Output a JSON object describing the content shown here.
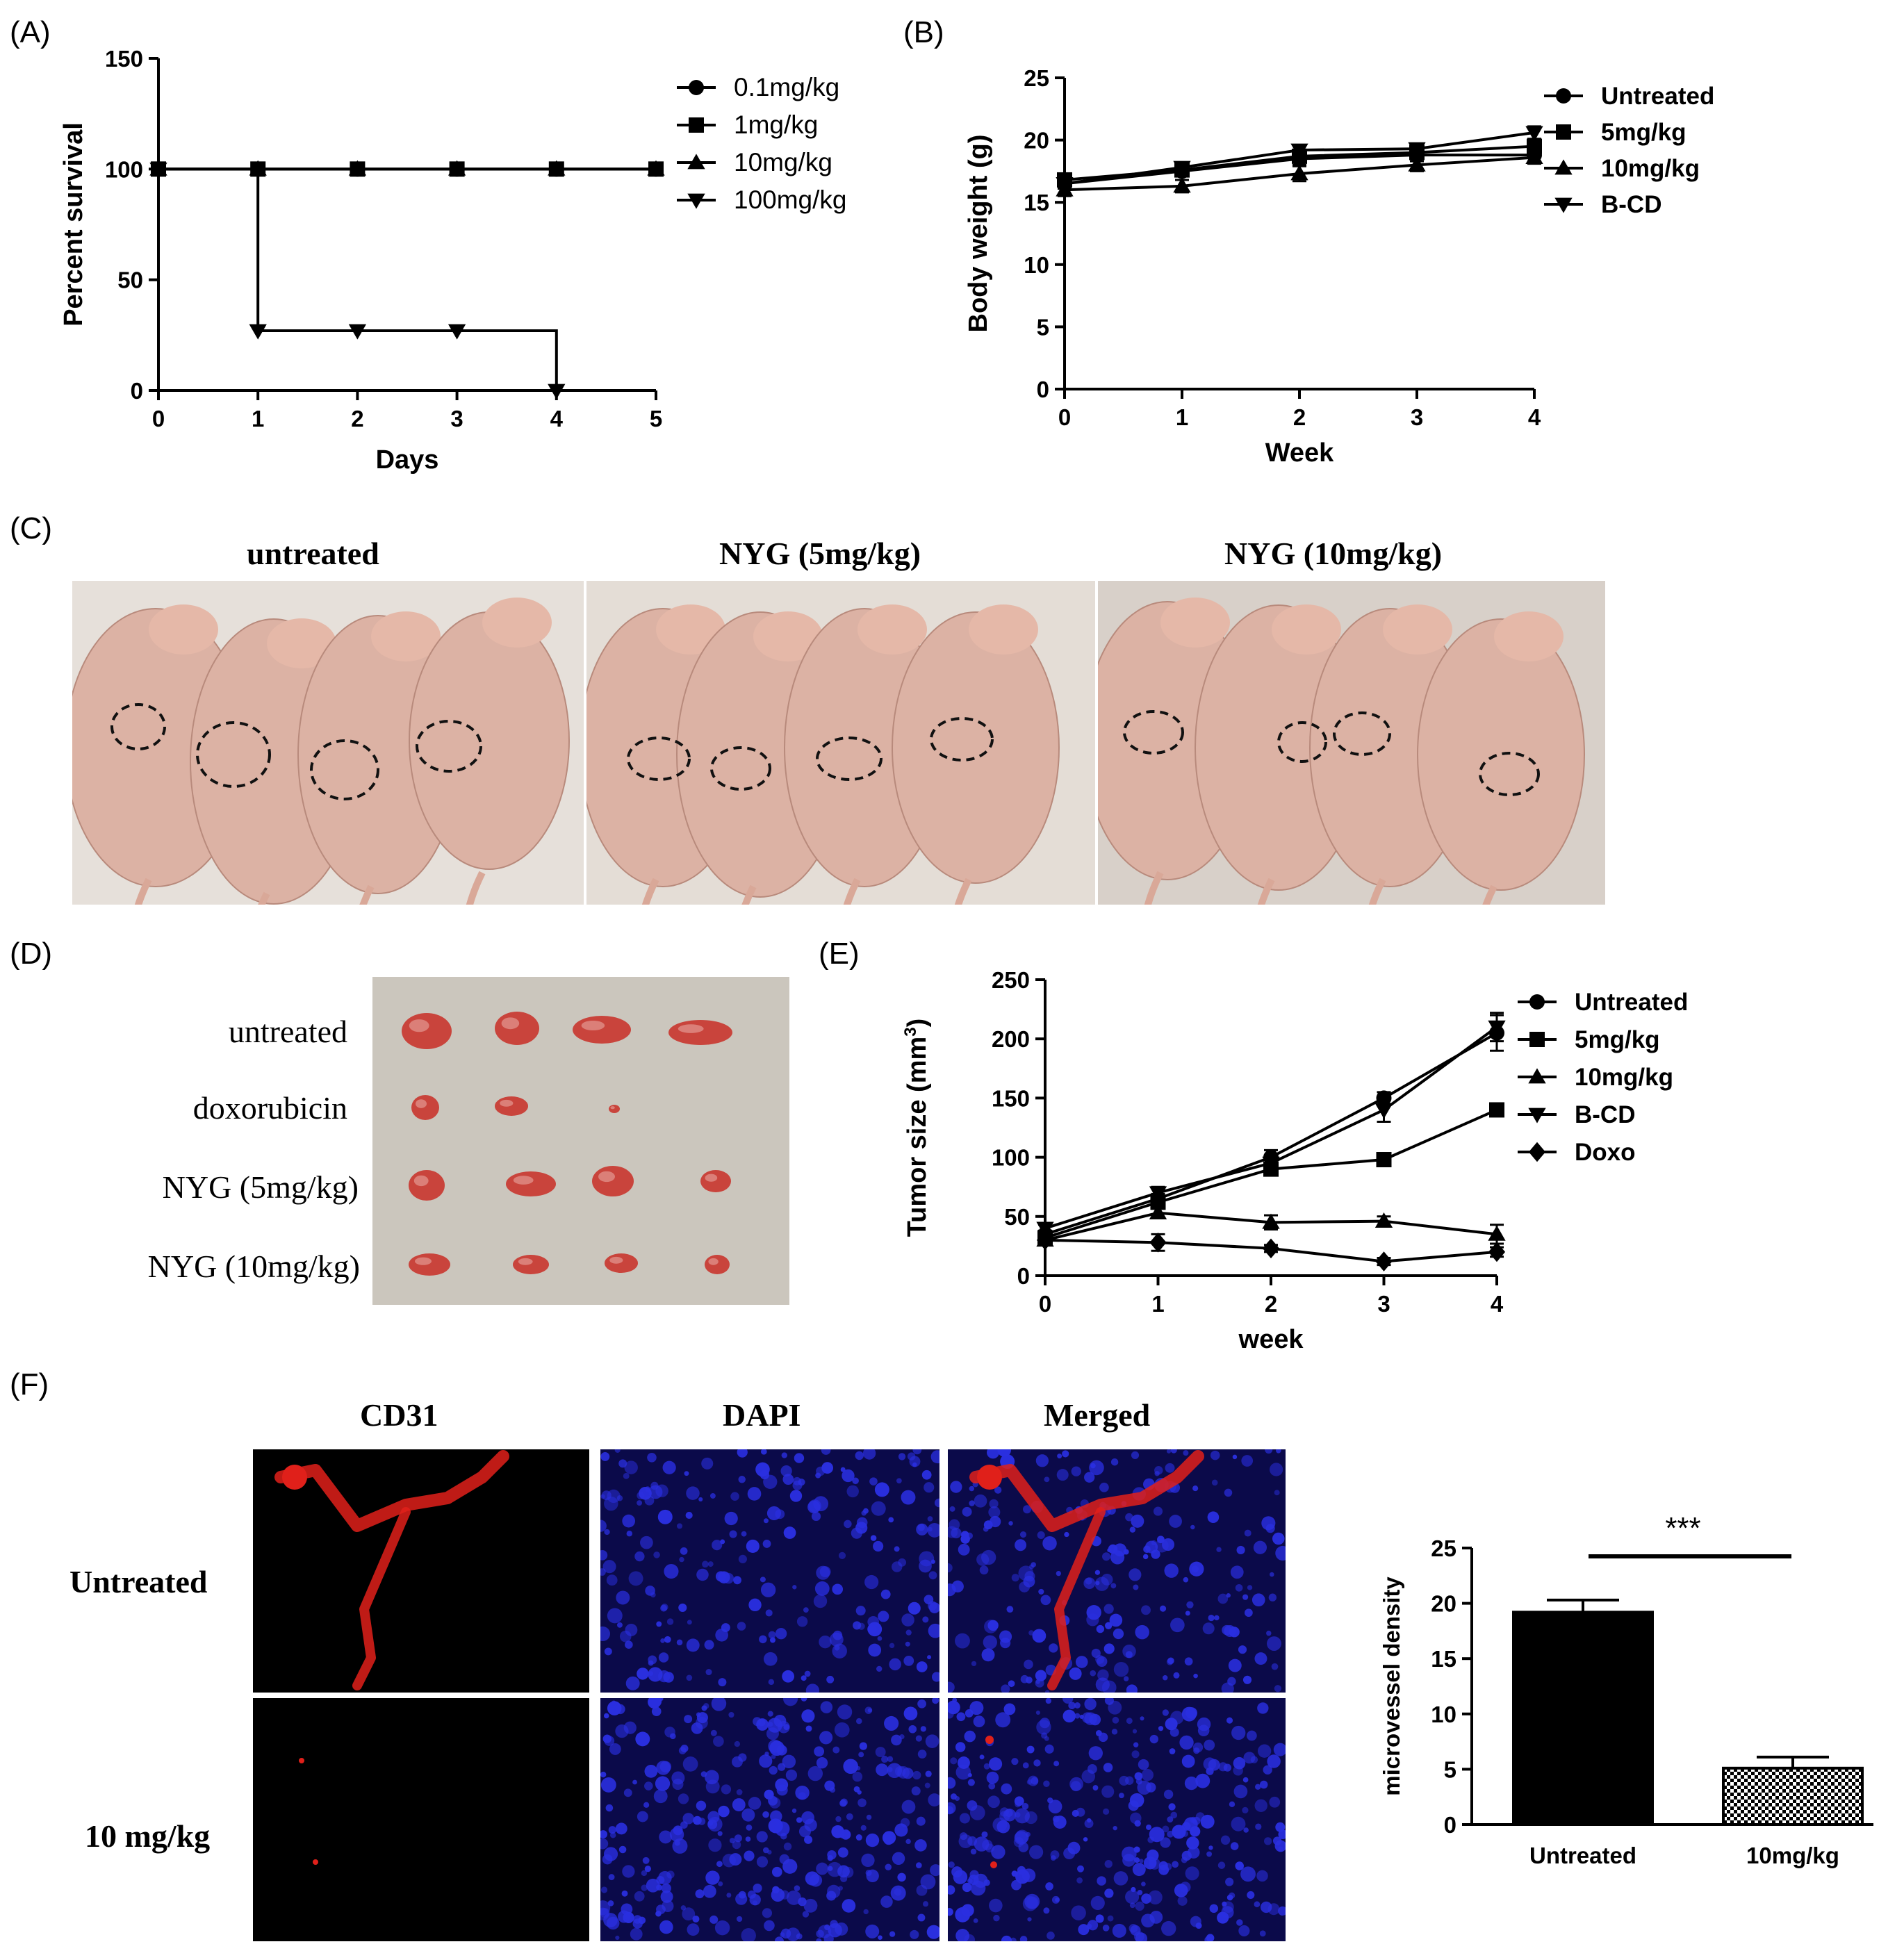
{
  "panels": {
    "A": "(A)",
    "B": "(B)",
    "C": "(C)",
    "D": "(D)",
    "E": "(E)",
    "F": "(F)"
  },
  "chart_data": [
    {
      "id": "A",
      "type": "line",
      "xlabel": "Days",
      "ylabel": "Percent survival",
      "xlim": [
        0,
        5
      ],
      "ylim": [
        0,
        150
      ],
      "xticks": [
        0,
        1,
        2,
        3,
        4,
        5
      ],
      "yticks": [
        0,
        50,
        100,
        150
      ],
      "legend_position": "right",
      "series": [
        {
          "name": "0.1mg/kg",
          "marker": "circle",
          "step": true,
          "x": [
            0,
            1,
            2,
            3,
            4,
            5
          ],
          "y": [
            100,
            100,
            100,
            100,
            100,
            100
          ]
        },
        {
          "name": "1mg/kg",
          "marker": "square",
          "step": true,
          "x": [
            0,
            1,
            2,
            3,
            4,
            5
          ],
          "y": [
            100,
            100,
            100,
            100,
            100,
            100
          ]
        },
        {
          "name": "10mg/kg",
          "marker": "triangle-up",
          "step": true,
          "x": [
            0,
            1,
            2,
            3,
            4,
            5
          ],
          "y": [
            100,
            100,
            100,
            100,
            100,
            100
          ]
        },
        {
          "name": "100mg/kg",
          "marker": "triangle-down",
          "step": true,
          "x": [
            0,
            1,
            2,
            3,
            4
          ],
          "y": [
            100,
            27,
            27,
            27,
            0
          ]
        }
      ]
    },
    {
      "id": "B",
      "type": "line",
      "xlabel": "Week",
      "ylabel": "Body weight (g)",
      "xlim": [
        0,
        4
      ],
      "ylim": [
        0,
        25
      ],
      "xticks": [
        0,
        1,
        2,
        3,
        4
      ],
      "yticks": [
        0,
        5,
        10,
        15,
        20,
        25
      ],
      "legend_position": "top-right",
      "series": [
        {
          "name": "Untreated",
          "marker": "circle",
          "x": [
            0,
            1,
            2,
            3,
            4
          ],
          "y": [
            16.5,
            17.5,
            18.5,
            18.8,
            18.8
          ],
          "err": [
            0.4,
            0.4,
            0.5,
            0.5,
            0.5
          ]
        },
        {
          "name": "5mg/kg",
          "marker": "square",
          "x": [
            0,
            1,
            2,
            3,
            4
          ],
          "y": [
            16.8,
            17.6,
            18.7,
            19.0,
            19.5
          ],
          "err": [
            0.4,
            0.4,
            0.5,
            0.5,
            0.5
          ]
        },
        {
          "name": "10mg/kg",
          "marker": "triangle-up",
          "x": [
            0,
            1,
            2,
            3,
            4
          ],
          "y": [
            16.0,
            16.3,
            17.3,
            18.0,
            18.6
          ],
          "err": [
            0.5,
            0.5,
            0.6,
            0.5,
            0.5
          ]
        },
        {
          "name": "B-CD",
          "marker": "triangle-down",
          "x": [
            0,
            1,
            2,
            3,
            4
          ],
          "y": [
            16.5,
            17.8,
            19.2,
            19.3,
            20.6
          ],
          "err": [
            0.4,
            0.4,
            0.4,
            0.4,
            0.5
          ]
        }
      ]
    },
    {
      "id": "E",
      "type": "line",
      "xlabel": "week",
      "ylabel": "Tumor size (mm",
      "ylabel_sup": "3",
      "ylabel_end": ")",
      "xlim": [
        0,
        4
      ],
      "ylim": [
        0,
        250
      ],
      "xticks": [
        0,
        1,
        2,
        3,
        4
      ],
      "yticks": [
        0,
        50,
        100,
        150,
        200,
        250
      ],
      "legend_position": "top-right",
      "series": [
        {
          "name": "Untreated",
          "marker": "circle",
          "x": [
            0,
            1,
            2,
            3,
            4
          ],
          "y": [
            35,
            65,
            100,
            150,
            205
          ],
          "err": [
            3,
            4,
            6,
            5,
            15
          ]
        },
        {
          "name": "5mg/kg",
          "marker": "square",
          "x": [
            0,
            1,
            2,
            3,
            4
          ],
          "y": [
            32,
            62,
            90,
            98,
            140
          ],
          "err": [
            3,
            4,
            5,
            4,
            5
          ]
        },
        {
          "name": "10mg/kg",
          "marker": "triangle-up",
          "x": [
            0,
            1,
            2,
            3,
            4
          ],
          "y": [
            30,
            53,
            45,
            46,
            35
          ],
          "err": [
            3,
            4,
            6,
            4,
            8
          ]
        },
        {
          "name": "B-CD",
          "marker": "triangle-down",
          "x": [
            0,
            1,
            2,
            3,
            4
          ],
          "y": [
            40,
            70,
            95,
            140,
            210
          ],
          "err": [
            3,
            5,
            6,
            10,
            12
          ]
        },
        {
          "name": "Doxo",
          "marker": "diamond",
          "x": [
            0,
            1,
            2,
            3,
            4
          ],
          "y": [
            30,
            28,
            23,
            12,
            20
          ],
          "err": [
            3,
            7,
            3,
            3,
            4
          ]
        }
      ]
    },
    {
      "id": "F",
      "type": "bar",
      "xlabel": "",
      "ylabel": "microvessel density",
      "ylim": [
        0,
        25
      ],
      "yticks": [
        0,
        5,
        10,
        15,
        20,
        25
      ],
      "categories": [
        "Untreated",
        "10mg/kg"
      ],
      "values": [
        19.2,
        5.1
      ],
      "err": [
        1.1,
        1.0
      ],
      "fills": [
        "solid-black",
        "checkered"
      ],
      "significance": "***"
    }
  ],
  "photos": {
    "C": {
      "labels": [
        "untreated",
        "NYG (5mg/kg)",
        "NYG (10mg/kg)"
      ]
    },
    "D": {
      "row_labels": [
        "untreated",
        "doxorubicin",
        "NYG (5mg/kg)",
        "NYG (10mg/kg)"
      ]
    },
    "F": {
      "column_labels": [
        "CD31",
        "DAPI",
        "Merged"
      ],
      "row_labels": [
        "Untreated",
        "10 mg/kg"
      ]
    }
  },
  "colors": {
    "line": "#000000",
    "mouse_skin": "#dcb2a4",
    "photo_bg_C": "#e4ddd6",
    "photo_bg_D": "#cbc6bd",
    "tumor": "#c9443c",
    "cd31": "#e0201a",
    "dapi_bg": "#0b0a4a",
    "dapi_nuclei": "#2a2fe0"
  }
}
